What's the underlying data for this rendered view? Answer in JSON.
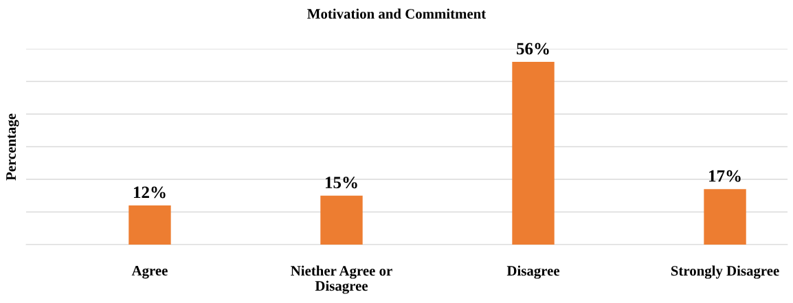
{
  "chart_data": {
    "type": "bar",
    "title": "Motivation and Commitment",
    "ylabel": "Percentage",
    "categories": [
      "Agree",
      "Niether Agree or\nDisagree",
      "Disagree",
      "Strongly Disagree"
    ],
    "series": [
      {
        "color": "#ed7d31",
        "values": [
          12,
          15,
          56,
          17
        ],
        "value_labels": [
          "12%",
          "15%",
          "56%",
          "17%"
        ]
      }
    ],
    "ylim": [
      0,
      60
    ],
    "yticks": [
      {
        "value": 0,
        "label": null
      },
      {
        "value": 10,
        "label": null
      },
      {
        "value": 20,
        "label": null
      },
      {
        "value": 30,
        "label": null
      },
      {
        "value": 40,
        "label": null
      },
      {
        "value": 50,
        "label": null
      },
      {
        "value": 60,
        "label": null
      }
    ],
    "grid": "y",
    "tick_labels": "x"
  }
}
